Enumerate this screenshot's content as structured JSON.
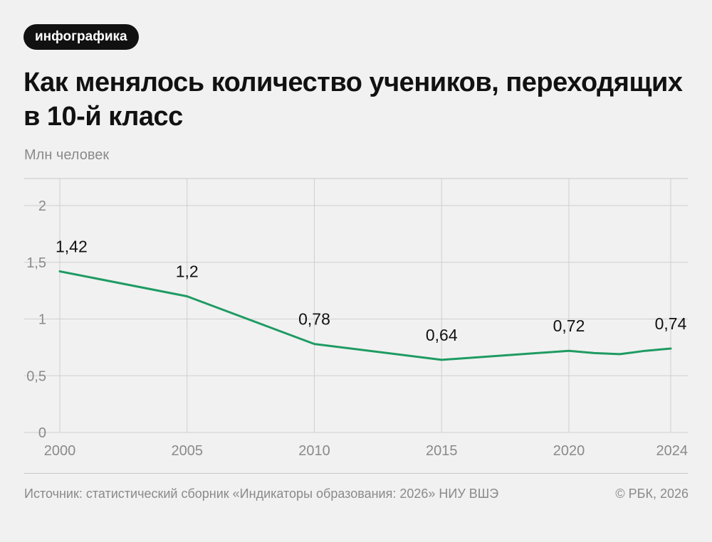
{
  "tag": "инфографика",
  "title": "Как менялось количество учеников, переходящих в 10-й класс",
  "unit_label": "Млн человек",
  "footer": {
    "source": "Источник: статистический сборник «Индикаторы образования: 2026» НИУ ВШЭ",
    "copyright": "© РБК, 2026"
  },
  "chart_data": {
    "type": "line",
    "title": "Как менялось количество учеников, переходящих в 10-й класс",
    "ylabel": "Млн человек",
    "xlabel": "",
    "xlim": [
      2000,
      2024
    ],
    "ylim": [
      0,
      2
    ],
    "x_ticks": [
      2000,
      2005,
      2010,
      2015,
      2020,
      2024
    ],
    "y_ticks": [
      0,
      0.5,
      1,
      1.5,
      2
    ],
    "y_tick_labels": [
      "0",
      "0,5",
      "1",
      "1,5",
      "2"
    ],
    "grid": true,
    "series": [
      {
        "color": "#1e9b62",
        "x": [
          2000,
          2005,
          2010,
          2015,
          2020,
          2021,
          2022,
          2023,
          2024
        ],
        "y": [
          1.42,
          1.2,
          0.78,
          0.64,
          0.72,
          0.7,
          0.69,
          0.72,
          0.74
        ]
      }
    ],
    "data_labels": [
      {
        "x": 2000,
        "y": 1.42,
        "text": "1,42"
      },
      {
        "x": 2005,
        "y": 1.2,
        "text": "1,2"
      },
      {
        "x": 2010,
        "y": 0.78,
        "text": "0,78"
      },
      {
        "x": 2015,
        "y": 0.64,
        "text": "0,64"
      },
      {
        "x": 2020,
        "y": 0.72,
        "text": "0,72"
      },
      {
        "x": 2024,
        "y": 0.74,
        "text": "0,74"
      }
    ]
  }
}
